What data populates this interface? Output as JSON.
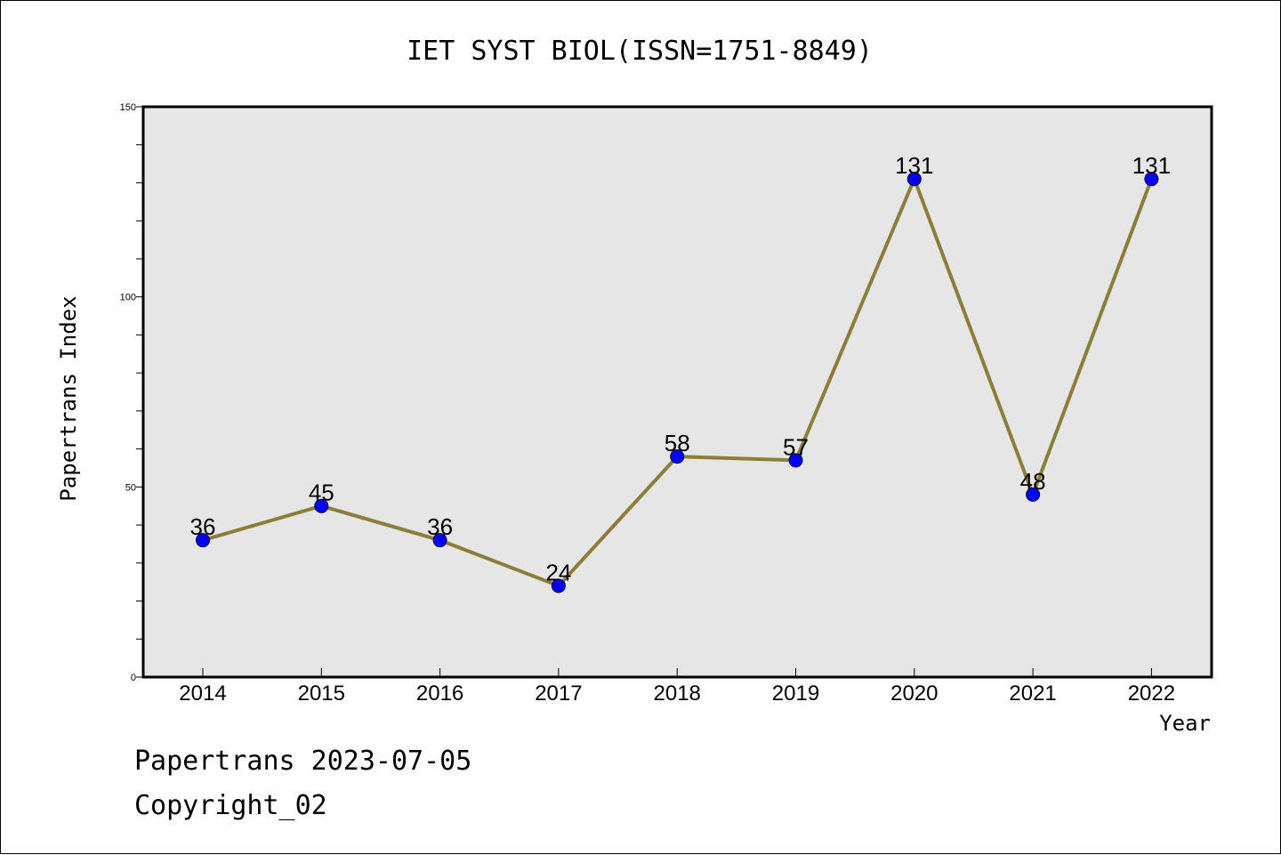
{
  "chart_data": {
    "type": "line",
    "title": "IET SYST BIOL(ISSN=1751-8849)",
    "xlabel": "Year",
    "ylabel": "Papertrans Index",
    "categories": [
      "2014",
      "2015",
      "2016",
      "2017",
      "2018",
      "2019",
      "2020",
      "2021",
      "2022"
    ],
    "series": [
      {
        "values": [
          36,
          45,
          36,
          24,
          58,
          57,
          131,
          48,
          131
        ]
      }
    ],
    "data_labels": [
      "36",
      "45",
      "36",
      "24",
      "58",
      "57",
      "131",
      "48",
      "131"
    ],
    "ylim": [
      0,
      150
    ],
    "yticks": [
      "0",
      "50",
      "100",
      "150"
    ],
    "grid": false,
    "colors": {
      "plot_background": "#e6e6e6",
      "line": "#8b7d3a",
      "marker": "#0000ff"
    }
  },
  "footer": {
    "line1": "Papertrans 2023-07-05",
    "line2": "Copyright_02"
  }
}
